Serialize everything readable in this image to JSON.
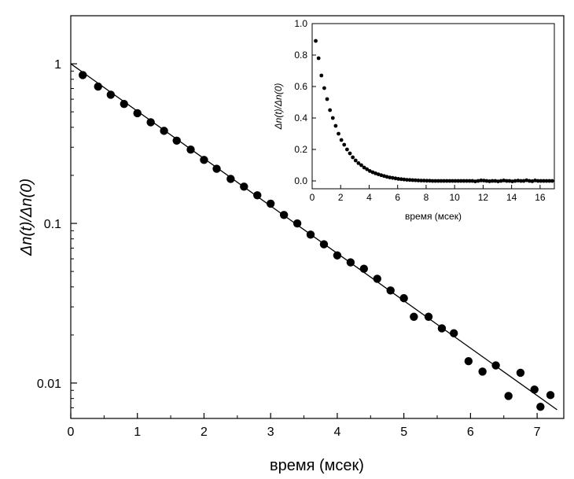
{
  "chart_data": [
    {
      "type": "scatter",
      "panel": "main",
      "title": "",
      "xlabel": "время (мсек)",
      "ylabel": "Δn(t)/Δn(0)",
      "xlim": [
        0,
        7.4
      ],
      "ylim": [
        0.006,
        2
      ],
      "yscale": "log",
      "grid": false,
      "x_ticks": [
        0,
        1,
        2,
        3,
        4,
        5,
        6,
        7
      ],
      "x_tick_labels": [
        "0",
        "1",
        "2",
        "3",
        "4",
        "5",
        "6",
        "7"
      ],
      "y_ticks": [
        1,
        0.1,
        0.01
      ],
      "y_tick_labels": [
        "1",
        "0.1",
        "0.01"
      ],
      "series": [
        {
          "points": [
            [
              0.18,
              0.85
            ],
            [
              0.41,
              0.72
            ],
            [
              0.6,
              0.64
            ],
            [
              0.8,
              0.56
            ],
            [
              1.0,
              0.49
            ],
            [
              1.2,
              0.43
            ],
            [
              1.4,
              0.38
            ],
            [
              1.59,
              0.33
            ],
            [
              1.8,
              0.29
            ],
            [
              2.0,
              0.25
            ],
            [
              2.19,
              0.22
            ],
            [
              2.4,
              0.19
            ],
            [
              2.6,
              0.17
            ],
            [
              2.8,
              0.15
            ],
            [
              3.0,
              0.133
            ],
            [
              3.2,
              0.113
            ],
            [
              3.4,
              0.1
            ],
            [
              3.6,
              0.085
            ],
            [
              3.8,
              0.074
            ],
            [
              4.0,
              0.063
            ],
            [
              4.2,
              0.057
            ],
            [
              4.4,
              0.052
            ],
            [
              4.6,
              0.045
            ],
            [
              4.8,
              0.038
            ],
            [
              5.0,
              0.034
            ],
            [
              5.15,
              0.026
            ],
            [
              5.37,
              0.026
            ],
            [
              5.57,
              0.022
            ],
            [
              5.75,
              0.0205
            ],
            [
              5.97,
              0.0137
            ],
            [
              6.18,
              0.0118
            ],
            [
              6.38,
              0.0129
            ],
            [
              6.57,
              0.0083
            ],
            [
              6.75,
              0.0116
            ],
            [
              6.96,
              0.0091
            ],
            [
              7.05,
              0.0071
            ],
            [
              7.2,
              0.0084
            ]
          ]
        }
      ],
      "fit_line": {
        "x": [
          0,
          7.3
        ],
        "y": [
          1.0,
          0.0068
        ]
      }
    },
    {
      "type": "scatter",
      "panel": "inset",
      "title": "",
      "xlabel": "время (мсек)",
      "ylabel": "Δn(t)/Δn(0)",
      "xlim": [
        0,
        17
      ],
      "ylim": [
        -0.05,
        1.0
      ],
      "grid": false,
      "x_ticks": [
        0,
        2,
        4,
        6,
        8,
        10,
        12,
        14,
        16
      ],
      "x_tick_labels": [
        "0",
        "2",
        "4",
        "6",
        "8",
        "10",
        "12",
        "14",
        "16"
      ],
      "y_ticks": [
        0.0,
        0.2,
        0.4,
        0.6,
        0.8,
        1.0
      ],
      "y_tick_labels": [
        "0.0",
        "0.2",
        "0.4",
        "0.6",
        "0.8",
        "1.0"
      ],
      "series": [
        {
          "points": [
            [
              0.25,
              0.89
            ],
            [
              0.45,
              0.78
            ],
            [
              0.65,
              0.67
            ],
            [
              0.85,
              0.59
            ],
            [
              1.05,
              0.52
            ],
            [
              1.25,
              0.45
            ],
            [
              1.45,
              0.4
            ],
            [
              1.65,
              0.35
            ],
            [
              1.85,
              0.3
            ],
            [
              2.05,
              0.26
            ],
            [
              2.25,
              0.23
            ],
            [
              2.45,
              0.2
            ],
            [
              2.65,
              0.175
            ],
            [
              2.85,
              0.15
            ],
            [
              3.05,
              0.13
            ],
            [
              3.25,
              0.113
            ],
            [
              3.45,
              0.1
            ],
            [
              3.65,
              0.085
            ],
            [
              3.85,
              0.074
            ],
            [
              4.05,
              0.063
            ],
            [
              4.25,
              0.055
            ],
            [
              4.45,
              0.048
            ],
            [
              4.65,
              0.042
            ],
            [
              4.85,
              0.036
            ],
            [
              5.05,
              0.031
            ],
            [
              5.25,
              0.026
            ],
            [
              5.45,
              0.022
            ],
            [
              5.65,
              0.019
            ],
            [
              5.85,
              0.016
            ],
            [
              6.05,
              0.013
            ],
            [
              6.25,
              0.011
            ],
            [
              6.45,
              0.009
            ],
            [
              6.65,
              0.007
            ],
            [
              6.85,
              0.006
            ],
            [
              7.05,
              0.005
            ],
            [
              7.25,
              0.004
            ],
            [
              7.45,
              0.003
            ],
            [
              7.65,
              0.002
            ],
            [
              7.85,
              0.002
            ],
            [
              8.05,
              0.001
            ],
            [
              8.25,
              0.001
            ],
            [
              8.45,
              0.0
            ],
            [
              8.65,
              0.0
            ],
            [
              8.85,
              0.0
            ],
            [
              9.05,
              0.0
            ],
            [
              9.25,
              0.0
            ],
            [
              9.45,
              0.0
            ],
            [
              9.65,
              0.0
            ],
            [
              9.85,
              0.0
            ],
            [
              10.05,
              0.0
            ],
            [
              10.25,
              0.0
            ],
            [
              10.45,
              0.0
            ],
            [
              10.65,
              0.0
            ],
            [
              10.85,
              0.0
            ],
            [
              11.05,
              0.0
            ],
            [
              11.25,
              0.0
            ],
            [
              11.45,
              -0.003
            ],
            [
              11.65,
              0.0
            ],
            [
              11.85,
              0.003
            ],
            [
              12.05,
              0.002
            ],
            [
              12.25,
              0.0
            ],
            [
              12.45,
              -0.002
            ],
            [
              12.65,
              0.0
            ],
            [
              12.85,
              0.0
            ],
            [
              13.05,
              -0.003
            ],
            [
              13.25,
              0.0
            ],
            [
              13.45,
              0.003
            ],
            [
              13.65,
              0.0
            ],
            [
              13.85,
              0.0
            ],
            [
              14.05,
              -0.003
            ],
            [
              14.25,
              0.0
            ],
            [
              14.45,
              0.002
            ],
            [
              14.65,
              0.0
            ],
            [
              14.85,
              0.0
            ],
            [
              15.05,
              0.004
            ],
            [
              15.25,
              0.0
            ],
            [
              15.45,
              -0.002
            ],
            [
              15.65,
              0.003
            ],
            [
              15.85,
              0.0
            ],
            [
              16.05,
              0.0
            ],
            [
              16.25,
              0.0
            ],
            [
              16.45,
              0.0
            ],
            [
              16.65,
              0.0
            ],
            [
              16.85,
              0.0
            ]
          ]
        }
      ]
    }
  ]
}
